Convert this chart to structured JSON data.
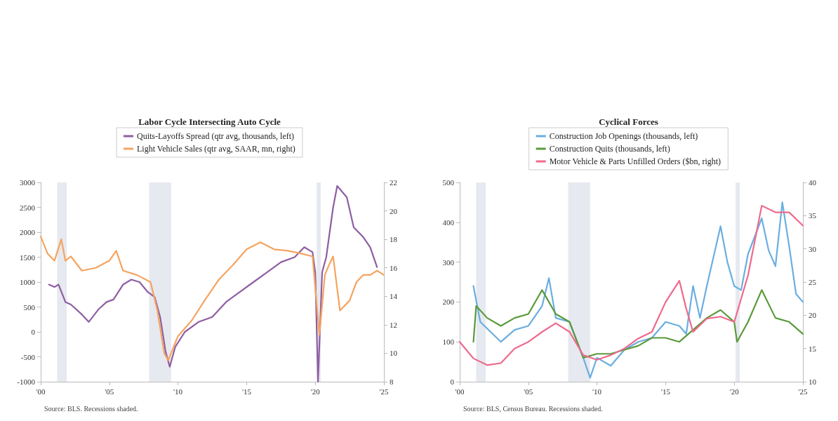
{
  "chart_data": [
    {
      "type": "line",
      "title": "Labor Cycle Intersecting Auto Cycle",
      "legend": "top",
      "grid": false,
      "marker": "none",
      "line_style": "solid",
      "xlim": [
        2000,
        2025
      ],
      "xticks": [
        {
          "value": 2000,
          "label": "'00"
        },
        {
          "value": 2005,
          "label": "'05"
        },
        {
          "value": 2010,
          "label": "'10"
        },
        {
          "value": 2015,
          "label": "'15"
        },
        {
          "value": 2020,
          "label": "'20"
        },
        {
          "value": 2025,
          "label": "'25"
        }
      ],
      "ylim": [
        -1000,
        3000
      ],
      "yticks": [
        -1000,
        -500,
        0,
        500,
        1000,
        1500,
        2000,
        2500,
        3000
      ],
      "y2lim": [
        8,
        22
      ],
      "y2ticks": [
        8,
        10,
        12,
        14,
        16,
        18,
        20,
        22
      ],
      "series": [
        {
          "name": "Quits-Layoffs Spread (qtr avg, thousands, left)",
          "color": "#8e5ea2",
          "x": [
            2000.6,
            2001.0,
            2001.3,
            2001.8,
            2002.2,
            2003.0,
            2003.5,
            2004.2,
            2004.8,
            2005.3,
            2006.0,
            2006.6,
            2007.2,
            2007.8,
            2008.3,
            2008.7,
            2009.1,
            2009.4,
            2009.8,
            2010.5,
            2011.5,
            2012.5,
            2013.5,
            2014.5,
            2015.5,
            2016.5,
            2017.5,
            2018.5,
            2019.2,
            2019.8,
            2020.0,
            2020.2,
            2020.5,
            2020.8,
            2021.3,
            2021.6,
            2022.3,
            2022.8,
            2023.5,
            2024.0,
            2024.5
          ],
          "values": [
            950,
            900,
            950,
            600,
            550,
            350,
            200,
            450,
            600,
            650,
            950,
            1050,
            1000,
            800,
            700,
            300,
            -400,
            -700,
            -300,
            0,
            200,
            300,
            600,
            800,
            1000,
            1200,
            1400,
            1500,
            1700,
            1600,
            1200,
            -1000,
            1200,
            1500,
            2500,
            2930,
            2700,
            2100,
            1900,
            1700,
            1300
          ]
        },
        {
          "name": "Light Vehicle Sales (qtr avg, SAAR, mn, right)",
          "color": "#f4a460",
          "axis": "y2",
          "x": [
            2000.0,
            2000.5,
            2001.0,
            2001.5,
            2001.8,
            2002.2,
            2003.0,
            2004.0,
            2005.0,
            2005.5,
            2006.0,
            2007.0,
            2008.0,
            2008.5,
            2009.0,
            2009.3,
            2009.7,
            2010.0,
            2011.0,
            2012.0,
            2013.0,
            2014.0,
            2015.0,
            2016.0,
            2017.0,
            2018.0,
            2019.0,
            2019.8,
            2020.3,
            2020.7,
            2021.0,
            2021.3,
            2021.8,
            2022.5,
            2023.0,
            2023.5,
            2024.0,
            2024.5,
            2025.0
          ],
          "values": [
            18.2,
            17.0,
            16.5,
            18.0,
            16.5,
            16.8,
            15.8,
            16.0,
            16.5,
            17.2,
            15.8,
            15.5,
            15.0,
            13.0,
            10.0,
            9.5,
            10.5,
            11.2,
            12.3,
            13.8,
            15.2,
            16.2,
            17.3,
            17.8,
            17.3,
            17.2,
            17.0,
            16.8,
            11.3,
            15.5,
            16.2,
            16.8,
            13.0,
            13.7,
            15.0,
            15.5,
            15.5,
            15.8,
            15.5
          ]
        }
      ],
      "bands": [
        {
          "axis": "x",
          "from": 2001.2,
          "to": 2001.9,
          "color": "#e6e9ef"
        },
        {
          "axis": "x",
          "from": 2007.9,
          "to": 2009.5,
          "color": "#e6e9ef"
        },
        {
          "axis": "x",
          "from": 2020.1,
          "to": 2020.4,
          "color": "#e6e9ef"
        }
      ],
      "annotations": [
        "Source: BLS. Recessions shaded."
      ]
    },
    {
      "type": "line",
      "title": "Cyclical Forces",
      "legend": "top",
      "grid": false,
      "marker": "none",
      "line_style": "solid",
      "xlim": [
        2000,
        2025
      ],
      "xticks": [
        {
          "value": 2000,
          "label": "'00"
        },
        {
          "value": 2005,
          "label": "'05"
        },
        {
          "value": 2010,
          "label": "'10"
        },
        {
          "value": 2015,
          "label": "'15"
        },
        {
          "value": 2020,
          "label": "'20"
        },
        {
          "value": 2025,
          "label": "'25"
        }
      ],
      "ylim": [
        0,
        500
      ],
      "yticks": [
        0,
        100,
        200,
        300,
        400,
        500
      ],
      "y2lim": [
        10,
        40
      ],
      "y2ticks": [
        10,
        15,
        20,
        25,
        30,
        35,
        40
      ],
      "series": [
        {
          "name": "Construction Job Openings (thousands, left)",
          "color": "#6aaee0",
          "x": [
            2001.0,
            2001.5,
            2003.0,
            2004.0,
            2005.0,
            2006.0,
            2006.5,
            2007.0,
            2008.0,
            2009.0,
            2009.5,
            2010.0,
            2011.0,
            2012.0,
            2013.0,
            2014.0,
            2015.0,
            2016.0,
            2016.5,
            2017.0,
            2017.5,
            2018.0,
            2019.0,
            2019.5,
            2020.0,
            2020.5,
            2021.0,
            2022.0,
            2022.5,
            2023.0,
            2023.5,
            2024.0,
            2024.5,
            2025.0
          ],
          "values": [
            240,
            150,
            100,
            130,
            140,
            190,
            260,
            160,
            150,
            60,
            10,
            60,
            40,
            80,
            100,
            110,
            150,
            140,
            120,
            240,
            160,
            240,
            390,
            300,
            240,
            230,
            320,
            410,
            330,
            290,
            450,
            340,
            220,
            200
          ]
        },
        {
          "name": "Construction Quits (thousands, left)",
          "color": "#5a9a3c",
          "x": [
            2001.0,
            2001.2,
            2002.0,
            2003.0,
            2004.0,
            2005.0,
            2006.0,
            2007.0,
            2008.0,
            2009.0,
            2010.0,
            2011.0,
            2012.0,
            2013.0,
            2014.0,
            2015.0,
            2016.0,
            2017.0,
            2018.0,
            2019.0,
            2020.0,
            2020.2,
            2021.0,
            2022.0,
            2023.0,
            2024.0,
            2025.0
          ],
          "values": [
            100,
            190,
            160,
            140,
            160,
            170,
            230,
            170,
            150,
            60,
            70,
            70,
            80,
            90,
            110,
            110,
            100,
            130,
            160,
            180,
            150,
            100,
            150,
            230,
            160,
            150,
            120
          ]
        },
        {
          "name": "Motor Vehicle & Parts Unfilled Orders ($bn, right)",
          "color": "#ee6a8c",
          "axis": "y2",
          "x": [
            2000.0,
            2001.0,
            2002.0,
            2003.0,
            2004.0,
            2005.0,
            2006.0,
            2007.0,
            2008.0,
            2009.0,
            2010.0,
            2011.0,
            2012.0,
            2013.0,
            2014.0,
            2015.0,
            2016.0,
            2016.5,
            2017.0,
            2018.0,
            2019.0,
            2020.0,
            2021.0,
            2022.0,
            2023.0,
            2024.0,
            2025.0
          ],
          "values": [
            16.0,
            13.5,
            12.5,
            12.8,
            15.0,
            16.0,
            17.5,
            18.8,
            17.5,
            14.0,
            13.3,
            14.0,
            15.0,
            16.5,
            17.5,
            22.0,
            25.2,
            21.0,
            17.5,
            19.5,
            19.8,
            19.0,
            26.0,
            36.5,
            35.5,
            35.5,
            33.5
          ]
        }
      ],
      "bands": [
        {
          "axis": "x",
          "from": 2001.2,
          "to": 2001.9,
          "color": "#e6e9ef"
        },
        {
          "axis": "x",
          "from": 2007.9,
          "to": 2009.5,
          "color": "#e6e9ef"
        },
        {
          "axis": "x",
          "from": 2020.1,
          "to": 2020.4,
          "color": "#e6e9ef"
        }
      ],
      "annotations": [
        "Source: BLS, Census Bureau. Recessions shaded."
      ]
    }
  ]
}
